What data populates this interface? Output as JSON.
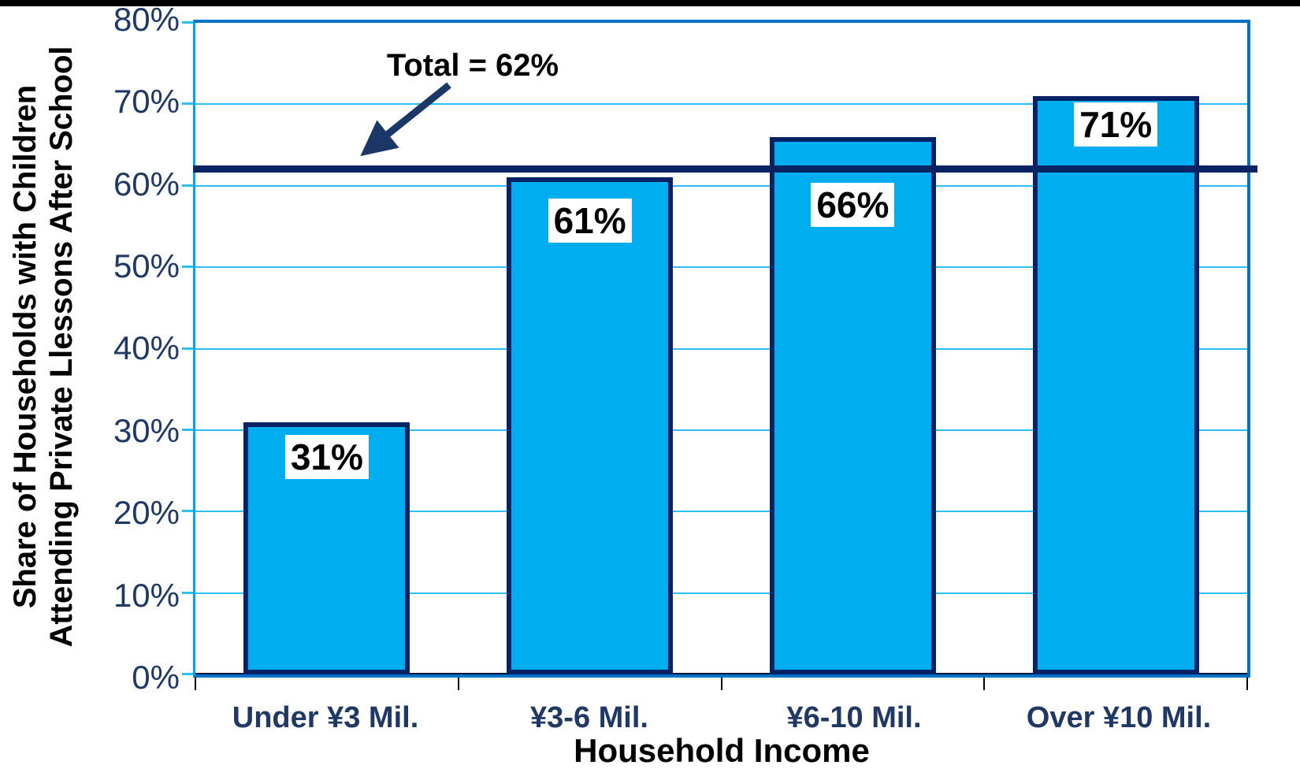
{
  "chart_data": {
    "type": "bar",
    "title": "",
    "categories": [
      "Under ¥3 Mil.",
      "¥3-6 Mil.",
      "¥6-10 Mil.",
      "Over ¥10 Mil."
    ],
    "values": [
      31,
      61,
      66,
      71
    ],
    "labels": [
      "31%",
      "61%",
      "66%",
      "71%"
    ],
    "xlabel": "Household Income",
    "ylabel": "Share of Households with Children\nAttending Private Llessons After School",
    "ylim": [
      0,
      80
    ],
    "ytick_step": 10,
    "yticks": [
      "80%",
      "70%",
      "60%",
      "50%",
      "40%",
      "30%",
      "20%",
      "10%",
      "0%"
    ],
    "grid": true,
    "legend": "none",
    "reference_line": {
      "label": "Total = 62%",
      "value": 62
    }
  },
  "colors": {
    "bar_fill": "#00AEEF",
    "bar_border": "#052265",
    "gridline": "#2BBFF2",
    "plot_border": "#0072C6",
    "left_axis_line": "#00A3E4",
    "tick_label_text": "#1F3864",
    "reference_line": "#0A2463",
    "annotation_arrow": "#1B3768",
    "text": "#000000",
    "top_bar": "#000000"
  }
}
